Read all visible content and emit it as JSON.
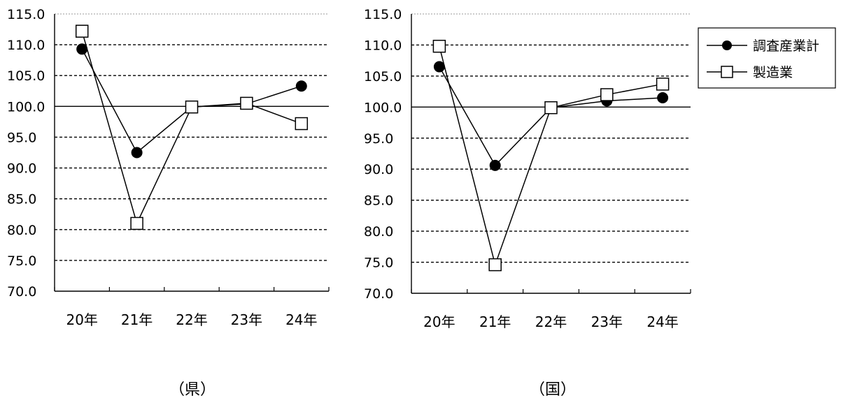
{
  "chart_data": [
    {
      "type": "line",
      "title": "",
      "caption": "（県）",
      "categories": [
        "20年",
        "21年",
        "22年",
        "23年",
        "24年"
      ],
      "ylim": [
        70.0,
        115.0
      ],
      "yticks": [
        "70.0",
        "75.0",
        "80.0",
        "85.0",
        "90.0",
        "95.0",
        "100.0",
        "105.0",
        "110.0",
        "115.0"
      ],
      "grid": true,
      "series": [
        {
          "name": "調査産業計",
          "marker": "filled-circle",
          "values": [
            109.3,
            92.5,
            99.9,
            100.4,
            103.3
          ]
        },
        {
          "name": "製造業",
          "marker": "open-square",
          "values": [
            112.2,
            81.0,
            99.9,
            100.5,
            97.2
          ]
        }
      ]
    },
    {
      "type": "line",
      "title": "",
      "caption": "（国）",
      "categories": [
        "20年",
        "21年",
        "22年",
        "23年",
        "24年"
      ],
      "ylim": [
        70.0,
        115.0
      ],
      "yticks": [
        "70.0",
        "75.0",
        "80.0",
        "85.0",
        "90.0",
        "95.0",
        "100.0",
        "105.0",
        "110.0",
        "115.0"
      ],
      "grid": true,
      "legend": "right",
      "series": [
        {
          "name": "調査産業計",
          "marker": "filled-circle",
          "values": [
            106.5,
            90.6,
            99.9,
            101.0,
            101.5
          ]
        },
        {
          "name": "製造業",
          "marker": "open-square",
          "values": [
            109.8,
            74.6,
            99.9,
            102.0,
            103.7
          ]
        }
      ]
    }
  ],
  "legend": {
    "items": [
      {
        "label": "調査産業計",
        "marker": "filled-circle"
      },
      {
        "label": "製造業",
        "marker": "open-square"
      }
    ]
  },
  "colors": {
    "line": "#000000",
    "grid": "#000000",
    "background": "#ffffff"
  }
}
